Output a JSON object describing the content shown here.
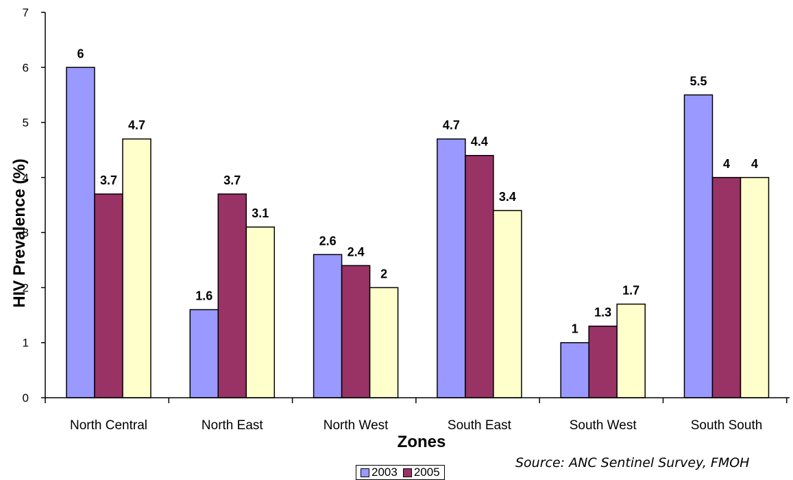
{
  "chart_data": {
    "type": "bar",
    "categories": [
      "North Central",
      "North East",
      "North West",
      "South East",
      "South West",
      "South South"
    ],
    "series": [
      {
        "name": "2003",
        "color": "#9999ff",
        "values": [
          6,
          1.6,
          2.6,
          4.7,
          1,
          5.5
        ]
      },
      {
        "name": "2005",
        "color": "#993366",
        "values": [
          3.7,
          3.7,
          2.4,
          4.4,
          1.3,
          4
        ]
      },
      {
        "name": "",
        "color": "#ffffcc",
        "values": [
          4.7,
          3.1,
          2,
          3.4,
          1.7,
          4
        ]
      }
    ],
    "data_labels": [
      [
        "6",
        "3.7",
        "4.7"
      ],
      [
        "1.6",
        "3.7",
        "3.1"
      ],
      [
        "2.6",
        "2.4",
        "2"
      ],
      [
        "4.7",
        "4.4",
        "3.4"
      ],
      [
        "1",
        "1.3",
        "1.7"
      ],
      [
        "5.5",
        "4",
        "4"
      ]
    ],
    "y_ticks": [
      "0",
      "1",
      "2",
      "3",
      "4",
      "5",
      "6",
      "7"
    ],
    "ylim": [
      0,
      7
    ],
    "xlabel": "Zones",
    "ylabel": "HIV Prevalence (%)",
    "legend_position": "bottom",
    "grid": false
  },
  "source": "Source: ANC Sentinel Survey, FMOH"
}
